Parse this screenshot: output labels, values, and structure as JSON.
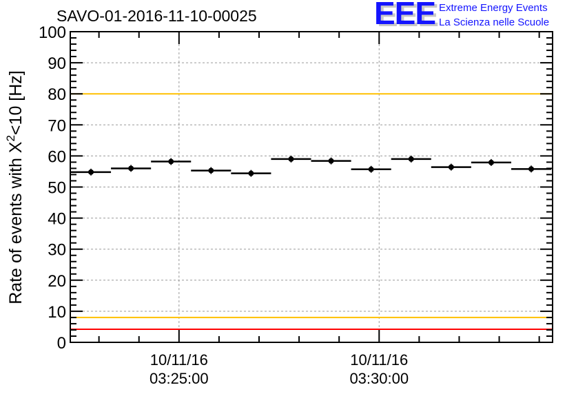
{
  "header": {
    "run_title": "SAVO-01-2016-11-10-00025",
    "logo_text": "EEE",
    "subtitle_line1": "Extreme Energy Events",
    "subtitle_line2": "La Scienza nelle Scuole"
  },
  "colors": {
    "limit_red": "#ff0000",
    "limit_orange": "#ffc000",
    "points": "#000000",
    "logo_blue": "#1414ff",
    "logo_shadow": "#c8c8c8",
    "text_blue": "#1414ff"
  },
  "chart_data": {
    "type": "scatter",
    "title": "SAVO-01-2016-11-10-00025",
    "xlabel": "",
    "ylabel_parts": [
      "Rate of events with X",
      "2",
      "<10 [Hz]"
    ],
    "ylim": [
      0,
      100
    ],
    "yticks": [
      "0",
      "10",
      "20",
      "30",
      "40",
      "50",
      "60",
      "70",
      "80",
      "90",
      "100"
    ],
    "xlim_seconds": [
      -163,
      560
    ],
    "x_reference": "03:25:00",
    "xticks": [
      {
        "t": 0,
        "date": "10/11/16",
        "time": "03:25:00"
      },
      {
        "t": 300,
        "date": "10/11/16",
        "time": "03:30:00"
      }
    ],
    "bin_width_seconds": 60,
    "bin_centers_seconds": [
      -132,
      -72,
      -12,
      48,
      108,
      168,
      228,
      288,
      348,
      408,
      468,
      528
    ],
    "values": [
      54.8,
      56.0,
      58.2,
      55.3,
      54.4,
      59.0,
      58.4,
      55.7,
      59.0,
      56.4,
      57.9,
      55.8
    ],
    "grid": true,
    "reference_lines": [
      {
        "y": 100,
        "color": "red"
      },
      {
        "y": 80,
        "color": "orange"
      },
      {
        "y": 8,
        "color": "orange"
      },
      {
        "y": 4.2,
        "color": "red"
      }
    ]
  }
}
